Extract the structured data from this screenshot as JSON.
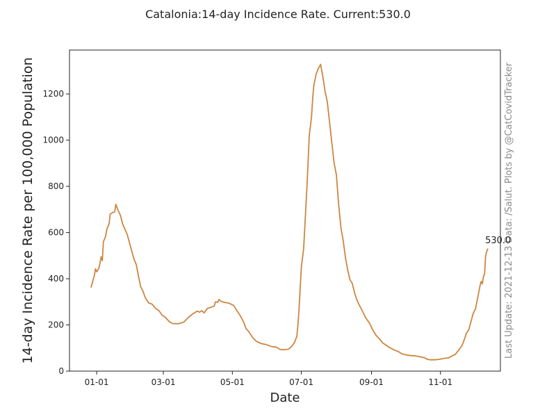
{
  "chart_data": {
    "type": "line",
    "title": "Catalonia:14-day Incidence Rate. Current:530.0",
    "xlabel": "Date",
    "ylabel": "14-day Incidence Rate per 100,000 Population",
    "side_note": "Last Update: 2021-12-13 Data: /Salut.   Plots by @CatCovidTracker",
    "current_label": "530.0",
    "grid": false,
    "line_color": "#CD853F",
    "x_range": [
      "2020-12-08",
      "2021-12-24"
    ],
    "ylim": [
      0,
      1390
    ],
    "x_ticks": [
      {
        "date": "2021-01-01",
        "label": "01-01"
      },
      {
        "date": "2021-03-01",
        "label": "03-01"
      },
      {
        "date": "2021-05-01",
        "label": "05-01"
      },
      {
        "date": "2021-07-01",
        "label": "07-01"
      },
      {
        "date": "2021-09-01",
        "label": "09-01"
      },
      {
        "date": "2021-11-01",
        "label": "11-01"
      }
    ],
    "y_ticks": [
      0,
      200,
      400,
      600,
      800,
      1000,
      1200
    ],
    "series": [
      {
        "points": [
          [
            "2020-12-27",
            362
          ],
          [
            "2020-12-30",
            415
          ],
          [
            "2020-12-31",
            443
          ],
          [
            "2021-01-01",
            430
          ],
          [
            "2021-01-03",
            445
          ],
          [
            "2021-01-05",
            495
          ],
          [
            "2021-01-06",
            478
          ],
          [
            "2021-01-07",
            560
          ],
          [
            "2021-01-09",
            585
          ],
          [
            "2021-01-10",
            615
          ],
          [
            "2021-01-12",
            638
          ],
          [
            "2021-01-13",
            680
          ],
          [
            "2021-01-15",
            686
          ],
          [
            "2021-01-17",
            690
          ],
          [
            "2021-01-18",
            722
          ],
          [
            "2021-01-20",
            695
          ],
          [
            "2021-01-22",
            675
          ],
          [
            "2021-01-24",
            637
          ],
          [
            "2021-01-28",
            592
          ],
          [
            "2021-02-01",
            520
          ],
          [
            "2021-02-03",
            485
          ],
          [
            "2021-02-05",
            462
          ],
          [
            "2021-02-07",
            410
          ],
          [
            "2021-02-09",
            365
          ],
          [
            "2021-02-11",
            345
          ],
          [
            "2021-02-13",
            318
          ],
          [
            "2021-02-16",
            295
          ],
          [
            "2021-02-19",
            290
          ],
          [
            "2021-02-22",
            272
          ],
          [
            "2021-02-25",
            262
          ],
          [
            "2021-02-28",
            242
          ],
          [
            "2021-03-03",
            232
          ],
          [
            "2021-03-06",
            215
          ],
          [
            "2021-03-09",
            206
          ],
          [
            "2021-03-14",
            205
          ],
          [
            "2021-03-19",
            212
          ],
          [
            "2021-03-23",
            232
          ],
          [
            "2021-03-27",
            248
          ],
          [
            "2021-03-31",
            260
          ],
          [
            "2021-04-02",
            255
          ],
          [
            "2021-04-04",
            262
          ],
          [
            "2021-04-06",
            252
          ],
          [
            "2021-04-09",
            272
          ],
          [
            "2021-04-12",
            276
          ],
          [
            "2021-04-15",
            282
          ],
          [
            "2021-04-16",
            300
          ],
          [
            "2021-04-18",
            298
          ],
          [
            "2021-04-19",
            310
          ],
          [
            "2021-04-21",
            302
          ],
          [
            "2021-04-24",
            298
          ],
          [
            "2021-04-28",
            294
          ],
          [
            "2021-05-02",
            285
          ],
          [
            "2021-05-05",
            262
          ],
          [
            "2021-05-08",
            240
          ],
          [
            "2021-05-11",
            212
          ],
          [
            "2021-05-13",
            185
          ],
          [
            "2021-05-16",
            168
          ],
          [
            "2021-05-19",
            145
          ],
          [
            "2021-05-22",
            130
          ],
          [
            "2021-05-26",
            120
          ],
          [
            "2021-05-31",
            115
          ],
          [
            "2021-06-05",
            106
          ],
          [
            "2021-06-09",
            104
          ],
          [
            "2021-06-11",
            97
          ],
          [
            "2021-06-13",
            93
          ],
          [
            "2021-06-17",
            93
          ],
          [
            "2021-06-20",
            96
          ],
          [
            "2021-06-23",
            110
          ],
          [
            "2021-06-25",
            125
          ],
          [
            "2021-06-27",
            150
          ],
          [
            "2021-06-28",
            200
          ],
          [
            "2021-06-29",
            270
          ],
          [
            "2021-07-01",
            450
          ],
          [
            "2021-07-03",
            530
          ],
          [
            "2021-07-06",
            800
          ],
          [
            "2021-07-08",
            1020
          ],
          [
            "2021-07-10",
            1100
          ],
          [
            "2021-07-11",
            1180
          ],
          [
            "2021-07-12",
            1235
          ],
          [
            "2021-07-14",
            1285
          ],
          [
            "2021-07-16",
            1310
          ],
          [
            "2021-07-18",
            1328
          ],
          [
            "2021-07-20",
            1275
          ],
          [
            "2021-07-22",
            1210
          ],
          [
            "2021-07-24",
            1165
          ],
          [
            "2021-07-27",
            1030
          ],
          [
            "2021-07-30",
            900
          ],
          [
            "2021-08-01",
            850
          ],
          [
            "2021-08-03",
            720
          ],
          [
            "2021-08-05",
            620
          ],
          [
            "2021-08-07",
            565
          ],
          [
            "2021-08-09",
            490
          ],
          [
            "2021-08-11",
            438
          ],
          [
            "2021-08-13",
            395
          ],
          [
            "2021-08-15",
            380
          ],
          [
            "2021-08-17",
            340
          ],
          [
            "2021-08-19",
            310
          ],
          [
            "2021-08-21",
            288
          ],
          [
            "2021-08-24",
            260
          ],
          [
            "2021-08-27",
            230
          ],
          [
            "2021-08-30",
            210
          ],
          [
            "2021-09-02",
            180
          ],
          [
            "2021-09-05",
            155
          ],
          [
            "2021-09-08",
            140
          ],
          [
            "2021-09-11",
            122
          ],
          [
            "2021-09-14",
            112
          ],
          [
            "2021-09-17",
            102
          ],
          [
            "2021-09-21",
            92
          ],
          [
            "2021-09-25",
            84
          ],
          [
            "2021-09-28",
            75
          ],
          [
            "2021-10-02",
            70
          ],
          [
            "2021-10-06",
            67
          ],
          [
            "2021-10-10",
            66
          ],
          [
            "2021-10-14",
            62
          ],
          [
            "2021-10-18",
            58
          ],
          [
            "2021-10-20",
            52
          ],
          [
            "2021-10-23",
            49
          ],
          [
            "2021-10-27",
            49
          ],
          [
            "2021-10-31",
            51
          ],
          [
            "2021-11-03",
            54
          ],
          [
            "2021-11-06",
            57
          ],
          [
            "2021-11-08",
            57
          ],
          [
            "2021-11-11",
            65
          ],
          [
            "2021-11-14",
            72
          ],
          [
            "2021-11-17",
            90
          ],
          [
            "2021-11-20",
            110
          ],
          [
            "2021-11-22",
            135
          ],
          [
            "2021-11-24",
            165
          ],
          [
            "2021-11-26",
            178
          ],
          [
            "2021-11-28",
            215
          ],
          [
            "2021-11-30",
            250
          ],
          [
            "2021-12-02",
            270
          ],
          [
            "2021-12-04",
            320
          ],
          [
            "2021-12-06",
            370
          ],
          [
            "2021-12-07",
            388
          ],
          [
            "2021-12-08",
            378
          ],
          [
            "2021-12-09",
            410
          ],
          [
            "2021-12-10",
            420
          ],
          [
            "2021-12-11",
            500
          ],
          [
            "2021-12-12",
            520
          ],
          [
            "2021-12-13",
            530
          ]
        ]
      }
    ]
  }
}
